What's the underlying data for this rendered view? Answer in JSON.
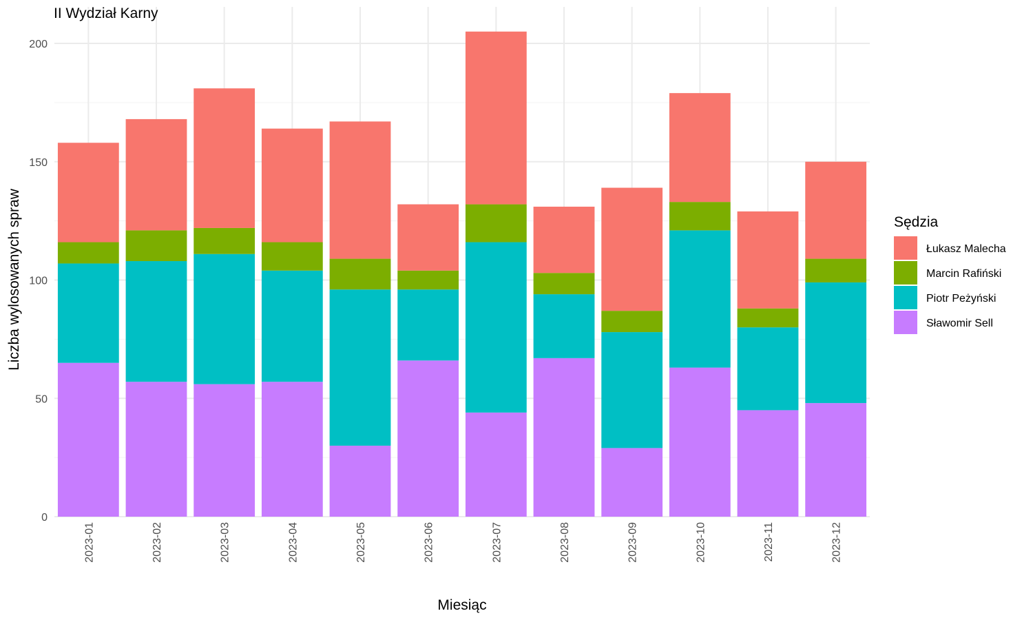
{
  "chart_data": {
    "type": "bar",
    "stacked": true,
    "title": "II Wydział Karny",
    "xlabel": "Miesiąc",
    "ylabel": "Liczba wylosowanych spraw",
    "ylim": [
      0,
      210
    ],
    "yticks": [
      0,
      50,
      100,
      150,
      200
    ],
    "grid": true,
    "legend_title": "Sędzia",
    "legend_position": "right",
    "categories": [
      "2023-01",
      "2023-02",
      "2023-03",
      "2023-04",
      "2023-05",
      "2023-06",
      "2023-07",
      "2023-08",
      "2023-09",
      "2023-10",
      "2023-11",
      "2023-12"
    ],
    "series": [
      {
        "name": "Łukasz Malecha",
        "color": "#F8766D",
        "values": [
          42,
          47,
          59,
          48,
          58,
          28,
          73,
          28,
          52,
          46,
          41,
          41
        ]
      },
      {
        "name": "Marcin Rafiński",
        "color": "#7CAE00",
        "values": [
          9,
          13,
          11,
          12,
          13,
          8,
          16,
          9,
          9,
          12,
          8,
          10
        ]
      },
      {
        "name": "Piotr Peżyński",
        "color": "#00BFC4",
        "values": [
          42,
          51,
          55,
          47,
          66,
          30,
          72,
          27,
          49,
          58,
          35,
          51
        ]
      },
      {
        "name": "Sławomir Sell",
        "color": "#C77CFF",
        "values": [
          65,
          57,
          56,
          57,
          30,
          66,
          44,
          67,
          29,
          63,
          45,
          48
        ]
      }
    ]
  }
}
